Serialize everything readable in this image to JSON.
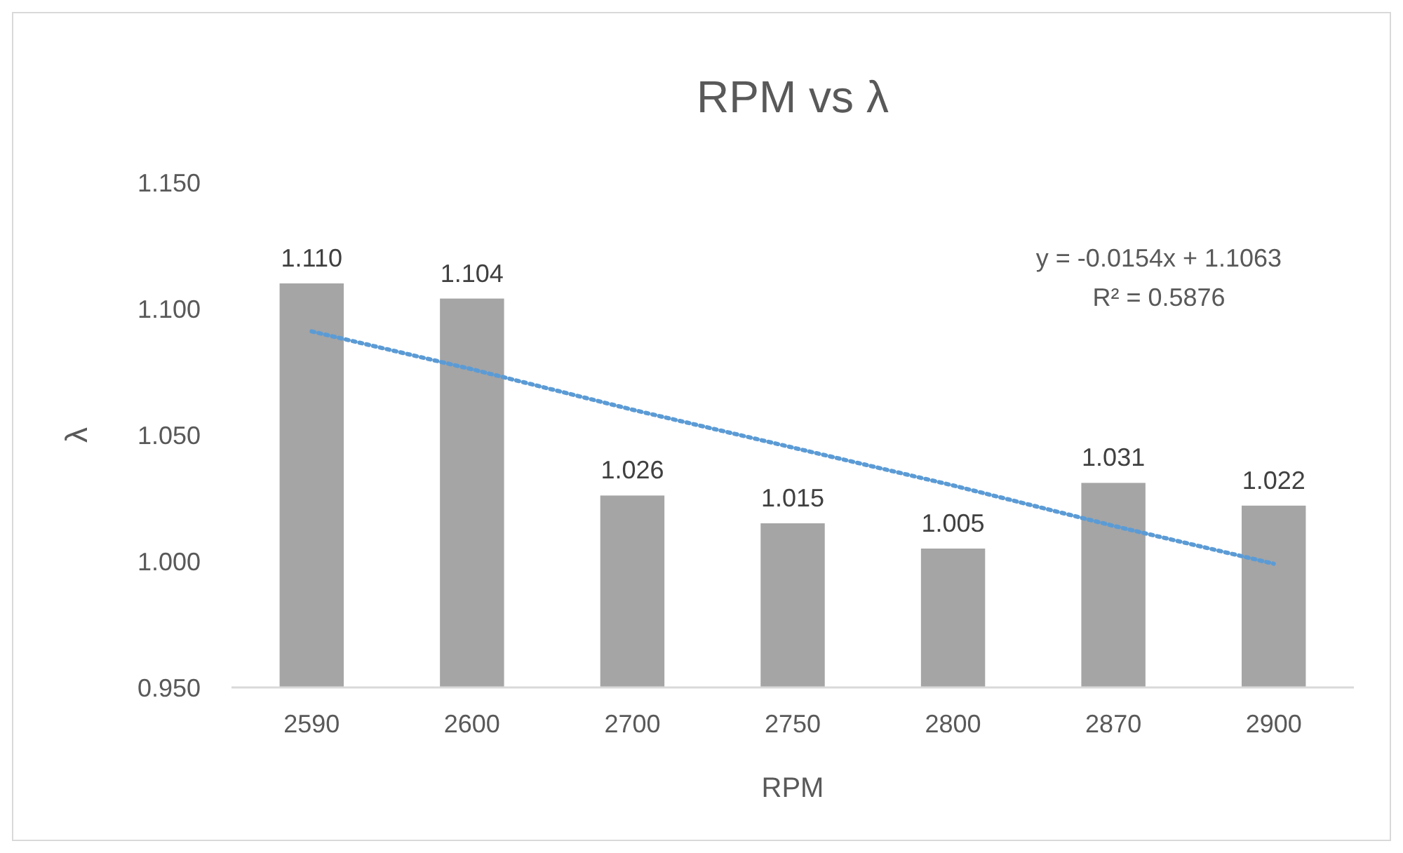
{
  "chart_data": {
    "type": "bar",
    "title": "RPM vs λ",
    "xlabel": "RPM",
    "ylabel": "λ",
    "categories": [
      "2590",
      "2600",
      "2700",
      "2750",
      "2800",
      "2870",
      "2900"
    ],
    "series": [
      {
        "color": "#a5a5a5",
        "values": [
          1.11,
          1.104,
          1.026,
          1.015,
          1.005,
          1.031,
          1.022
        ],
        "value_labels": [
          "1.110",
          "1.104",
          "1.026",
          "1.015",
          "1.005",
          "1.031",
          "1.022"
        ]
      },
      {
        "type": "line",
        "color": "#5b9bd5",
        "values": [
          1.091,
          1.076,
          1.06,
          1.045,
          1.03,
          1.014,
          0.999
        ],
        "line_style": "dotted",
        "marker": "none"
      }
    ],
    "ylim": [
      0.95,
      1.15
    ],
    "yticks": [
      {
        "value": 0.95,
        "label": "0.950"
      },
      {
        "value": 1.0,
        "label": "1.000"
      },
      {
        "value": 1.05,
        "label": "1.050"
      },
      {
        "value": 1.1,
        "label": "1.100"
      },
      {
        "value": 1.15,
        "label": "1.150"
      }
    ],
    "grid": false,
    "annotations": [
      "y = -0.0154x + 1.1063",
      "R² = 0.5876"
    ]
  }
}
